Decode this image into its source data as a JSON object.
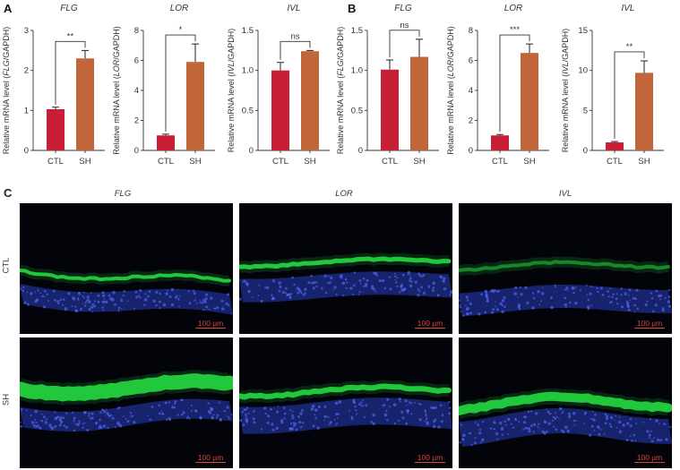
{
  "panel_labels": {
    "a": "A",
    "b": "B",
    "c": "C"
  },
  "y_label_parts": {
    "prefix": "Relative mRNA level (",
    "suffix": "/GAPDH)"
  },
  "chart_data": [
    {
      "type": "bar",
      "panel": "A",
      "title": "FLG",
      "gene": "FLG",
      "categories": [
        "CTL",
        "SH"
      ],
      "values": [
        1.03,
        2.3
      ],
      "errors": [
        0.05,
        0.2
      ],
      "ylim": [
        0,
        3
      ],
      "yticks": [
        "0",
        "1",
        "2",
        "3"
      ],
      "significance": "**",
      "colors": [
        "#c81e36",
        "#c0663a"
      ]
    },
    {
      "type": "bar",
      "panel": "A",
      "title": "LOR",
      "gene": "LOR",
      "categories": [
        "CTL",
        "SH"
      ],
      "values": [
        1.0,
        5.9
      ],
      "errors": [
        0.08,
        1.2
      ],
      "ylim": [
        0,
        8
      ],
      "yticks": [
        "0",
        "2",
        "4",
        "6",
        "8"
      ],
      "significance": "*",
      "colors": [
        "#c81e36",
        "#c0663a"
      ]
    },
    {
      "type": "bar",
      "panel": "A",
      "title": "IVL",
      "gene": "IVL",
      "categories": [
        "CTL",
        "SH"
      ],
      "values": [
        1.0,
        1.24
      ],
      "errors": [
        0.1,
        0.01
      ],
      "ylim": [
        0,
        1.5
      ],
      "yticks": [
        "0",
        "0.5",
        "1.0",
        "1.5"
      ],
      "significance": "ns",
      "colors": [
        "#c81e36",
        "#c0663a"
      ]
    },
    {
      "type": "bar",
      "panel": "B",
      "title": "FLG",
      "gene": "FLG",
      "categories": [
        "CTL",
        "SH"
      ],
      "values": [
        1.01,
        1.17
      ],
      "errors": [
        0.12,
        0.22
      ],
      "ylim": [
        0,
        1.5
      ],
      "yticks": [
        "0",
        "0.5",
        "1.0",
        "1.5"
      ],
      "significance": "ns",
      "colors": [
        "#c81e36",
        "#c0663a"
      ]
    },
    {
      "type": "bar",
      "panel": "B",
      "title": "LOR",
      "gene": "LOR",
      "categories": [
        "CTL",
        "SH"
      ],
      "values": [
        1.0,
        6.5
      ],
      "errors": [
        0.06,
        0.6
      ],
      "ylim": [
        0,
        8
      ],
      "yticks": [
        "0",
        "2",
        "4",
        "6",
        "8"
      ],
      "significance": "***",
      "colors": [
        "#c81e36",
        "#c0663a"
      ]
    },
    {
      "type": "bar",
      "panel": "B",
      "title": "IVL",
      "gene": "IVL",
      "categories": [
        "CTL",
        "SH"
      ],
      "values": [
        1.0,
        9.7
      ],
      "errors": [
        0.1,
        1.5
      ],
      "ylim": [
        0,
        15
      ],
      "yticks": [
        "0",
        "5",
        "10",
        "15"
      ],
      "significance": "**",
      "colors": [
        "#c81e36",
        "#c0663a"
      ]
    }
  ],
  "micrographs": {
    "columns": [
      "FLG",
      "LOR",
      "IVL"
    ],
    "rows": [
      "CTL",
      "SH"
    ],
    "scale_bar": "100 µm",
    "colors": {
      "stain": "#22c83c",
      "nuclei": "#2a3fc0"
    }
  }
}
